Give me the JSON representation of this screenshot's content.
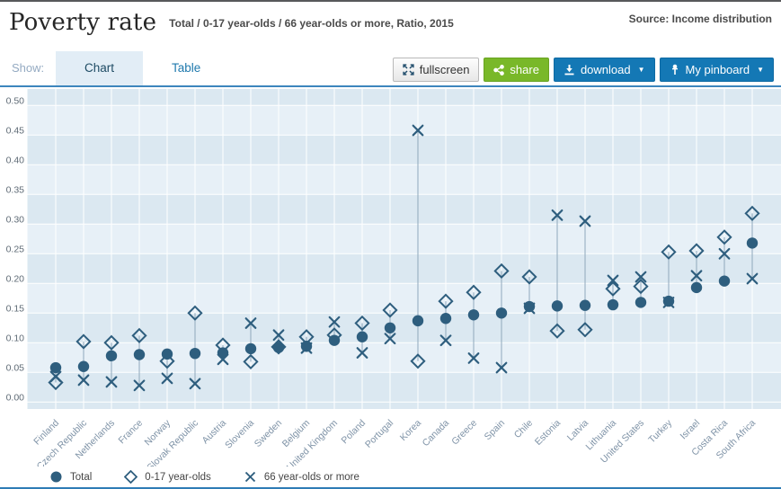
{
  "header": {
    "title": "Poverty rate",
    "subtitle": "Total / 0-17 year-olds / 66 year-olds or more, Ratio, 2015",
    "source": "Source: Income distribution"
  },
  "toolbar": {
    "show_label": "Show:",
    "tabs": [
      {
        "label": "Chart",
        "active": true
      },
      {
        "label": "Table",
        "active": false
      }
    ],
    "buttons": {
      "fullscreen": "fullscreen",
      "share": "share",
      "download": "download",
      "pinboard": "My pinboard"
    },
    "caret": "▼"
  },
  "colors": {
    "marker": "#2e5e7e",
    "connector": "#8fa8bc",
    "band_dark": "#dbe8f1",
    "band_light": "#e7f0f7",
    "gridline": "#ffffff",
    "y_tick_text": "#5f6b76",
    "x_tick_text": "#7f93a7",
    "accent_blue": "#1478b5",
    "accent_green": "#79b829",
    "toolbar_line": "#3d86bd",
    "bottom_bar": "#2e7cb6"
  },
  "chart_data": {
    "type": "scatter",
    "title": "Poverty rate",
    "subtitle": "Total / 0-17 year-olds / 66 year-olds or more, Ratio, 2015",
    "ylim": [
      0,
      0.5
    ],
    "y_ticks": [
      "0.00",
      "0.05",
      "0.10",
      "0.15",
      "0.20",
      "0.25",
      "0.30",
      "0.35",
      "0.40",
      "0.45",
      "0.50"
    ],
    "grid": true,
    "legend_position": "bottom",
    "x_tick_rotation": -45,
    "categories": [
      "Finland",
      "Czech Republic",
      "Netherlands",
      "France",
      "Norway",
      "Slovak Republic",
      "Austria",
      "Slovenia",
      "Sweden",
      "Belgium",
      "United Kingdom",
      "Poland",
      "Portugal",
      "Korea",
      "Canada",
      "Greece",
      "Spain",
      "Chile",
      "Estonia",
      "Latvia",
      "Lithuania",
      "United States",
      "Turkey",
      "Israel",
      "Costa Rica",
      "South Africa"
    ],
    "series": [
      {
        "name": "Total",
        "marker": "circle",
        "values": [
          0.058,
          0.06,
          0.078,
          0.08,
          0.081,
          0.082,
          0.083,
          0.09,
          0.092,
          0.094,
          0.104,
          0.11,
          0.125,
          0.137,
          0.141,
          0.147,
          0.15,
          0.161,
          0.162,
          0.163,
          0.164,
          0.168,
          0.17,
          0.193,
          0.204,
          0.268
        ]
      },
      {
        "name": "0-17 year-olds",
        "marker": "diamond",
        "values": [
          0.033,
          0.102,
          0.1,
          0.112,
          0.069,
          0.15,
          0.096,
          0.068,
          0.093,
          0.11,
          0.113,
          0.133,
          0.155,
          0.069,
          0.17,
          0.185,
          0.221,
          0.211,
          0.12,
          0.122,
          0.191,
          0.195,
          0.253,
          0.255,
          0.278,
          0.318
        ]
      },
      {
        "name": "66 year-olds or more",
        "marker": "x",
        "values": [
          0.043,
          0.037,
          0.034,
          0.028,
          0.04,
          0.031,
          0.072,
          0.133,
          0.113,
          0.091,
          0.135,
          0.083,
          0.107,
          0.458,
          0.104,
          0.074,
          0.058,
          0.158,
          0.315,
          0.305,
          0.205,
          0.211,
          0.168,
          0.213,
          0.25,
          0.208
        ]
      }
    ]
  }
}
